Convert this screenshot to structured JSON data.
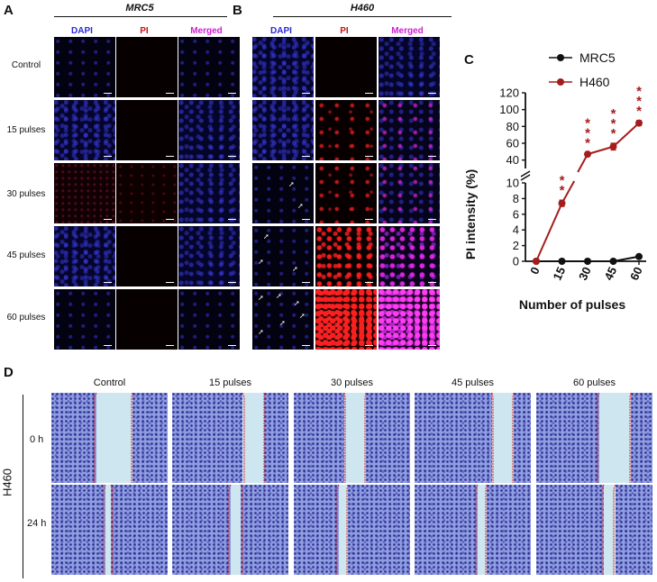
{
  "panels": {
    "A": {
      "letter": "A",
      "title": "MRC5"
    },
    "B": {
      "letter": "B",
      "title": "H460"
    },
    "C": {
      "letter": "C"
    },
    "D": {
      "letter": "D"
    }
  },
  "column_headers": {
    "dapi": "DAPI",
    "pi": "PI",
    "merged": "Merged"
  },
  "row_labels": [
    "Control",
    "15 pulses",
    "30 pulses",
    "45 pulses",
    "60 pulses"
  ],
  "colors": {
    "dapi": "#2a2ad8",
    "pi": "#d01010",
    "merged": "#d020d0",
    "h460": "#a61c1c",
    "mrc5": "#111111"
  },
  "chart_data": {
    "type": "line",
    "x": [
      0,
      15,
      30,
      45,
      60
    ],
    "xticks": [
      "0",
      "15",
      "30",
      "45",
      "60"
    ],
    "xlabel": "Number of pulses",
    "ylabel": "PI intensity (%)",
    "yticks_lower": [
      "0",
      "2",
      "4",
      "6",
      "8",
      "10"
    ],
    "yticks_upper": [
      "40",
      "60",
      "80",
      "100",
      "120"
    ],
    "ylim_lower": [
      0,
      10
    ],
    "ylim_upper": [
      30,
      120
    ],
    "axis_break": true,
    "legend_position": "top",
    "series": [
      {
        "name": "MRC5",
        "values": [
          0,
          0,
          0,
          0,
          0.6
        ],
        "color": "#111111"
      },
      {
        "name": "H460",
        "values": [
          0,
          7.4,
          47,
          56,
          84
        ],
        "color": "#a61c1c",
        "errors": [
          0,
          0.4,
          2,
          4,
          3
        ],
        "significance": [
          "",
          "**",
          "***",
          "***",
          "***"
        ]
      }
    ]
  },
  "wound_healing": {
    "cell_line": "H460",
    "conditions": [
      "Control",
      "15 pulses",
      "30 pulses",
      "45 pulses",
      "60 pulses"
    ],
    "timepoints": [
      "0 h",
      "24 h"
    ]
  }
}
